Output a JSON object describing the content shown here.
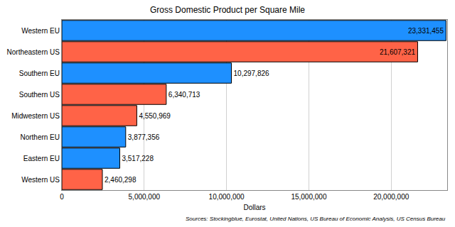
{
  "chart_data": {
    "type": "bar",
    "orientation": "horizontal",
    "title": "Gross Domestic Product per Square Mile",
    "x_label": "Dollars",
    "annotations": [
      "Sources: Stockingblue, Eurostat, United Nations, US Bureau of Economic Analysis, US Census Bureau"
    ],
    "categories": [
      "Western EU",
      "Northeastern US",
      "Southern EU",
      "Southern US",
      "Midwestern US",
      "Northern EU",
      "Eastern EU",
      "Western US"
    ],
    "values": [
      23331455,
      21607321,
      10297826,
      6340713,
      4550969,
      3877356,
      3517228,
      2460298
    ],
    "value_labels": [
      "23,331,455",
      "21,607,321",
      "10,297,826",
      "6,340,713",
      "4,550,969",
      "3,877,356",
      "3,517,228",
      "2,460,298"
    ],
    "colors": [
      "#1e90ff",
      "#ff6347",
      "#1e90ff",
      "#ff6347",
      "#ff6347",
      "#1e90ff",
      "#1e90ff",
      "#ff6347"
    ],
    "xlim": [
      0,
      23400000
    ],
    "xticks": [
      0,
      {
        "value": 5000000,
        "label": "5,000,000"
      },
      {
        "value": 10000000,
        "label": "10,000,000"
      },
      {
        "value": 15000000,
        "label": "15,000,000"
      },
      {
        "value": 20000000,
        "label": "20,000,000"
      }
    ],
    "grid": true,
    "data_labels": true
  }
}
